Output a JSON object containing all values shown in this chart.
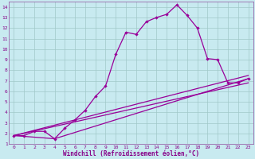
{
  "title": "",
  "xlabel": "Windchill (Refroidissement éolien,°C)",
  "ylabel": "",
  "bg_color": "#c8eaf0",
  "grid_color": "#a0c8c8",
  "line_color": "#990099",
  "text_color": "#880088",
  "spine_color": "#9966aa",
  "xlim": [
    -0.5,
    23.5
  ],
  "ylim": [
    1,
    14.5
  ],
  "xticks": [
    0,
    1,
    2,
    3,
    4,
    5,
    6,
    7,
    8,
    9,
    10,
    11,
    12,
    13,
    14,
    15,
    16,
    17,
    18,
    19,
    20,
    21,
    22,
    23
  ],
  "yticks": [
    1,
    2,
    3,
    4,
    5,
    6,
    7,
    8,
    9,
    10,
    11,
    12,
    13,
    14
  ],
  "curve1_x": [
    0,
    1,
    2,
    3,
    4,
    5,
    6,
    7,
    8,
    9,
    10,
    11,
    12,
    13,
    14,
    15,
    16,
    17,
    18,
    19,
    20,
    21,
    22,
    23
  ],
  "curve1_y": [
    1.8,
    1.8,
    2.2,
    2.2,
    1.5,
    2.5,
    3.3,
    4.2,
    5.5,
    6.5,
    9.5,
    11.6,
    11.4,
    12.6,
    13.0,
    13.3,
    14.2,
    13.2,
    12.0,
    9.1,
    9.0,
    6.8,
    6.8,
    7.2
  ],
  "curve2_x": [
    0,
    23
  ],
  "curve2_y": [
    1.8,
    7.5
  ],
  "curve3_x": [
    0,
    4,
    23
  ],
  "curve3_y": [
    1.8,
    1.5,
    7.2
  ],
  "curve4_x": [
    0,
    23
  ],
  "curve4_y": [
    1.8,
    6.8
  ]
}
